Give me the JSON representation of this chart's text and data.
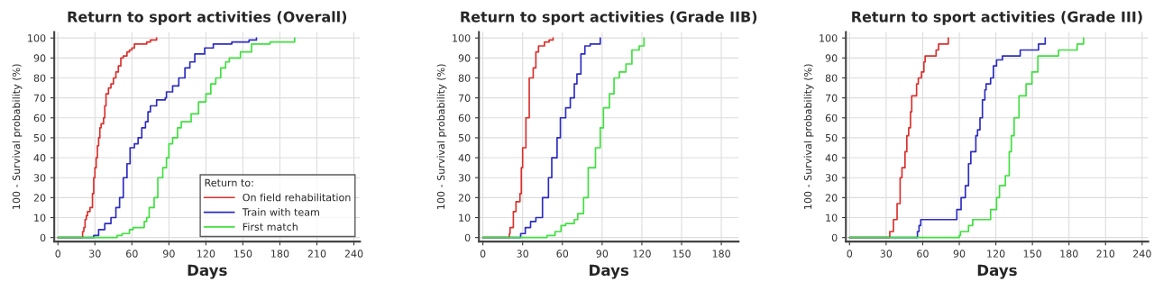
{
  "chart_data": [
    {
      "type": "step",
      "title": "Return to sport activities (Overall)",
      "xlabel": "Days",
      "ylabel": "100 - Survival probability (%)",
      "legend_title": "Return to:",
      "legend": "bottom right",
      "grid": true,
      "xlim": [
        -3,
        245
      ],
      "xticks": [
        0,
        30,
        60,
        90,
        120,
        150,
        180,
        210,
        240
      ],
      "ylim": [
        -2,
        103
      ],
      "yticks": [
        0,
        10,
        20,
        30,
        40,
        50,
        60,
        70,
        80,
        90,
        100
      ],
      "series": [
        {
          "name": "On field rehabilitation",
          "color": "#d9302c",
          "x": [
            0,
            20,
            21,
            22,
            23,
            24,
            26,
            28,
            29,
            30,
            31,
            32,
            33,
            34,
            35,
            37,
            38,
            39,
            41,
            43,
            45,
            47,
            49,
            51,
            53,
            56,
            58,
            60,
            62,
            72,
            75,
            80
          ],
          "values": [
            0,
            3,
            5,
            9,
            11,
            13,
            15,
            22,
            30,
            35,
            40,
            46,
            50,
            55,
            57,
            60,
            66,
            72,
            75,
            77,
            80,
            83,
            86,
            90,
            91,
            93,
            94,
            95,
            97,
            98,
            99,
            100
          ]
        },
        {
          "name": "Train with team",
          "color": "#2c2cc0",
          "x": [
            0,
            29,
            33,
            38,
            43,
            47,
            50,
            53,
            56,
            58.5,
            62,
            65,
            68,
            71,
            73,
            75,
            80,
            87,
            88,
            93,
            98,
            103,
            107,
            111,
            119,
            126,
            141,
            155,
            161
          ],
          "values": [
            0,
            1,
            4,
            7,
            10,
            15,
            20,
            30,
            37,
            45,
            47,
            50,
            55,
            58,
            63,
            66,
            69,
            70,
            73,
            76,
            80,
            85,
            88,
            92,
            95,
            97,
            98,
            99,
            100
          ]
        },
        {
          "name": "First match",
          "color": "#3fe03f",
          "x": [
            0,
            48,
            52,
            58,
            61,
            70,
            72,
            74,
            78,
            81,
            85,
            88,
            90,
            93,
            97,
            100,
            108,
            114,
            120,
            124,
            128,
            132,
            136,
            139,
            148,
            157,
            172,
            192
          ],
          "values": [
            0,
            1,
            2,
            4,
            5,
            8,
            10,
            15,
            20,
            30,
            35,
            40,
            47,
            50,
            55,
            58,
            62,
            68,
            72,
            77,
            80,
            85,
            88,
            90,
            93,
            97,
            98,
            100
          ]
        }
      ]
    },
    {
      "type": "step",
      "title": "Return to sport activities (Grade IIB)",
      "xlabel": "Days",
      "ylabel": "100 - Survival probability (%)",
      "grid": true,
      "xlim": [
        -3,
        193
      ],
      "xticks": [
        0,
        30,
        60,
        90,
        120,
        150,
        180
      ],
      "ylim": [
        -2,
        103
      ],
      "yticks": [
        0,
        10,
        20,
        30,
        40,
        50,
        60,
        70,
        80,
        90,
        100
      ],
      "series": [
        {
          "color": "#d9302c",
          "x": [
            0,
            20,
            20.5,
            23,
            25,
            28,
            29,
            30,
            32.5,
            35,
            38,
            40,
            42,
            46.5,
            50,
            53
          ],
          "values": [
            0,
            2,
            5,
            13,
            18,
            22,
            35,
            45,
            60,
            80,
            85,
            93,
            96,
            98,
            99,
            100
          ]
        },
        {
          "color": "#2c2cc0",
          "x": [
            0,
            28.5,
            32,
            36,
            40,
            45,
            49.5,
            52,
            56,
            58.5,
            62.5,
            66,
            69,
            71,
            74,
            77,
            81,
            88.6
          ],
          "values": [
            0,
            2,
            5,
            8,
            10,
            20,
            30,
            40,
            50,
            60,
            65,
            70,
            77,
            82,
            92,
            96,
            97,
            100
          ]
        },
        {
          "color": "#3fe03f",
          "x": [
            0,
            48.4,
            54.5,
            59,
            62.5,
            69,
            71.6,
            76,
            79.5,
            85,
            88.6,
            91,
            95.5,
            99,
            103,
            108,
            112.5,
            118,
            121.6
          ],
          "values": [
            0,
            1,
            3,
            6,
            7,
            9,
            12,
            20,
            35,
            45,
            55,
            65,
            72,
            80,
            83,
            87,
            94,
            96,
            100
          ]
        }
      ]
    },
    {
      "type": "step",
      "title": "Return to sport activities (Grade III)",
      "xlabel": "Days",
      "ylabel": "100 - Survival probability (%)",
      "grid": true,
      "xlim": [
        -3,
        245
      ],
      "xticks": [
        0,
        30,
        60,
        90,
        120,
        150,
        180,
        210,
        240
      ],
      "ylim": [
        -2,
        103
      ],
      "yticks": [
        0,
        10,
        20,
        30,
        40,
        50,
        60,
        70,
        80,
        90,
        100
      ],
      "series": [
        {
          "color": "#d9302c",
          "x": [
            0,
            33,
            36,
            39,
            41.5,
            43,
            45.5,
            47,
            48.5,
            50,
            51,
            55,
            56.4,
            59,
            61,
            62,
            71,
            73,
            81
          ],
          "values": [
            0,
            3,
            9,
            17,
            30,
            35,
            43,
            51,
            55,
            63,
            71,
            77,
            80,
            83,
            88,
            91,
            94,
            97,
            100
          ]
        },
        {
          "color": "#2c2cc0",
          "x": [
            0,
            55.7,
            57,
            58.4,
            88,
            91.5,
            95,
            97.6,
            99.5,
            103.6,
            105,
            107,
            109,
            111,
            112,
            115.7,
            118,
            120.6,
            125.4,
            140,
            155,
            160.5
          ],
          "values": [
            0,
            3,
            6,
            9,
            14,
            20,
            26,
            37,
            43,
            51,
            54,
            60,
            69,
            74,
            77,
            80,
            86,
            89,
            91,
            94,
            97,
            100
          ]
        },
        {
          "color": "#3fe03f",
          "x": [
            0,
            90,
            91,
            97.6,
            101,
            115.7,
            120.6,
            123,
            127.8,
            131,
            132.7,
            135,
            139,
            144.8,
            149.6,
            154.5,
            171.4,
            186.7,
            192
          ],
          "values": [
            0,
            1,
            3,
            6,
            9,
            14,
            20,
            26,
            31,
            43,
            51,
            60,
            71,
            77,
            83,
            91,
            94,
            97,
            100
          ]
        }
      ]
    }
  ]
}
